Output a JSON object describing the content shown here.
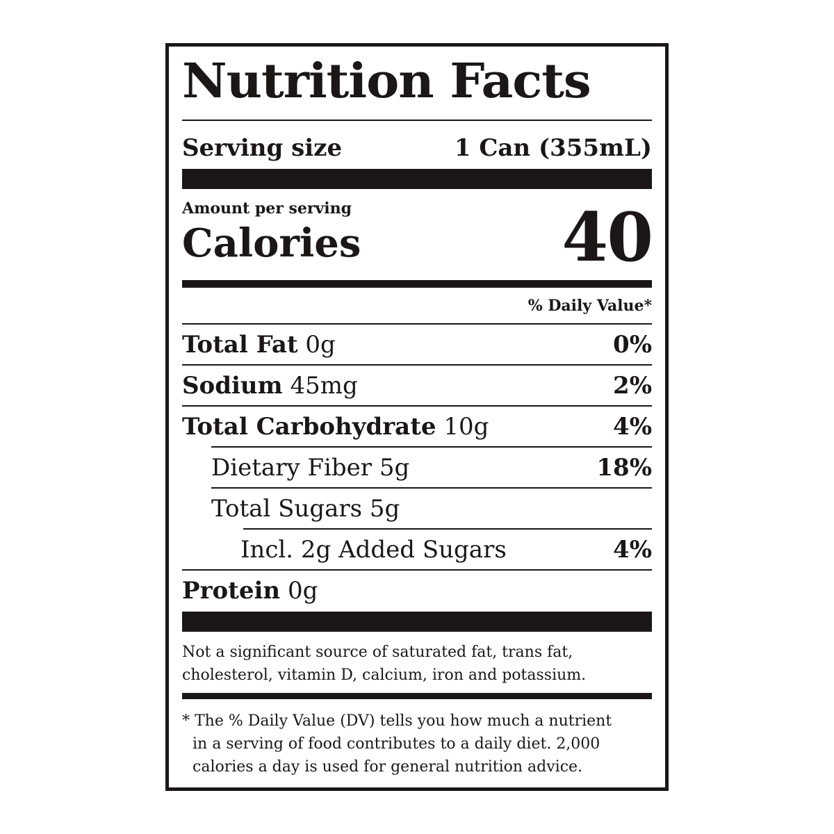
{
  "title": "Nutrition Facts",
  "serving": {
    "label": "Serving size",
    "value": "1 Can (355mL)"
  },
  "amount_per_serving": "Amount per serving",
  "calories": {
    "label": "Calories",
    "value": "40"
  },
  "dv_header": "% Daily Value*",
  "nutrients": [
    {
      "name": "Total Fat",
      "amount": "0g",
      "dv": "0%"
    },
    {
      "name": "Sodium",
      "amount": "45mg",
      "dv": "2%"
    },
    {
      "name": "Total Carbohydrate",
      "amount": "10g",
      "dv": "4%"
    },
    {
      "name": "Dietary Fiber 5g",
      "amount": "",
      "dv": "18%"
    },
    {
      "name": "Total Sugars 5g",
      "amount": "",
      "dv": ""
    },
    {
      "name": "Incl. 2g Added Sugars",
      "amount": "",
      "dv": "4%"
    },
    {
      "name": "Protein",
      "amount": "0g",
      "dv": ""
    }
  ],
  "not_significant": [
    "Not a significant source of saturated fat, trans fat,",
    "cholesterol, vitamin D, calcium, iron and potassium."
  ],
  "footnote": [
    "* The % Daily Value (DV) tells you how much a nutrient",
    "in a serving of food contributes to a daily diet. 2,000",
    "calories a day is used for general nutrition advice."
  ]
}
